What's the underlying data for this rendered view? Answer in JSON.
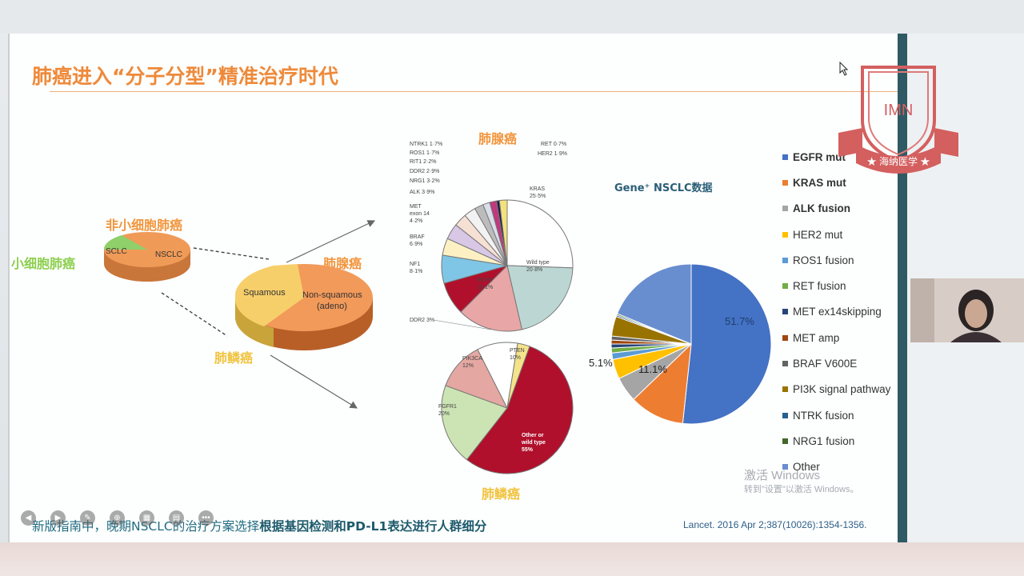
{
  "slide": {
    "title": "肺癌进入“分子分型”精准治疗时代",
    "labels": {
      "nsclc_title": "非小细胞肺癌",
      "sclc_side": "小细胞肺癌",
      "adeno_top": "肺腺癌",
      "adeno_mid": "肺腺癌",
      "squamous_mid": "肺鳞癌",
      "squamous_bottom": "肺鳞癌"
    },
    "small_pie": {
      "sclc": "SCLC",
      "nsclc": "NSCLC"
    },
    "mid_pie": {
      "squamous": "Squamous",
      "nonsq_line1": "Non-squamous",
      "nonsq_line2": "(adeno)"
    },
    "adeno_pie": {
      "kras_1": "KRAS",
      "kras_2": "25·5%",
      "wild_1": "Wild type",
      "wild_2": "20·8%",
      "egfr_1": "EGFR",
      "egfr_2": "16·1%",
      "nf1_1": "NF1",
      "nf1_2": "8·1%",
      "braf_1": "BRAF",
      "braf_2": "6·9%",
      "met_1": "MET",
      "met_2": "exon 14",
      "met_3": "4·2%",
      "alk": "ALK 3·9%",
      "nrg1": "NRG1 3·2%",
      "ddr2": "DDR2 2·9%",
      "rit1": "RIT1 2·2%",
      "ros1": "ROS1 1·7%",
      "ntrk1": "NTRK1 1·7%",
      "ret": "RET 0·7%",
      "her2": "HER2 1·9%"
    },
    "sq_pie": {
      "ddr2": "DDR2 3%",
      "pten_1": "PTEN",
      "pten_2": "10%",
      "pik3ca_1": "PIK3CA",
      "pik3ca_2": "12%",
      "fgfr1_1": "FGFR1",
      "fgfr1_2": "20%",
      "other_1": "Other or",
      "other_2": "wild type",
      "other_3": "55%"
    },
    "gene_title": "Gene⁺ NSCLC数据",
    "gene_pie_labels": {
      "egfr": "51.7%",
      "kras": "11.1%",
      "alk": "5.1%"
    },
    "legend": [
      {
        "label": "EGFR mut",
        "color": "#4472c4",
        "bold": true
      },
      {
        "label": "KRAS mut",
        "color": "#ed7d31",
        "bold": true
      },
      {
        "label": "ALK fusion",
        "color": "#a5a5a5",
        "bold": true
      },
      {
        "label": "HER2 mut",
        "color": "#ffc000",
        "bold": false
      },
      {
        "label": "ROS1 fusion",
        "color": "#5b9bd5",
        "bold": false
      },
      {
        "label": "RET fusion",
        "color": "#70ad47",
        "bold": false
      },
      {
        "label": "MET ex14skipping",
        "color": "#264478",
        "bold": false
      },
      {
        "label": "MET amp",
        "color": "#9e480e",
        "bold": false
      },
      {
        "label": "BRAF V600E",
        "color": "#636363",
        "bold": false
      },
      {
        "label": "PI3K signal pathway",
        "color": "#997300",
        "bold": false
      },
      {
        "label": "NTRK fusion",
        "color": "#255e91",
        "bold": false
      },
      {
        "label": "NRG1 fusion",
        "color": "#43682b",
        "bold": false
      },
      {
        "label": "Other",
        "color": "#698ed0",
        "bold": false
      }
    ],
    "footer_normal": "新版指南中，晚期NSCLC的治疗方案选择",
    "footer_bold": "根据基因检测和PD-L1表达进行人群细分",
    "citation": "Lancet. 2016 Apr 2;387(10026):1354-1356.",
    "watermark_line1": "激活 Windows",
    "watermark_line2": "转到\"设置\"以激活 Windows。",
    "logo_text": "IMN",
    "logo_banner": "★ 海纳医学 ★"
  },
  "chart_data": [
    {
      "type": "pie",
      "title": "Gene⁺ NSCLC数据",
      "categories": [
        "EGFR mut",
        "KRAS mut",
        "ALK fusion",
        "HER2 mut",
        "ROS1 fusion",
        "RET fusion",
        "MET ex14skipping",
        "MET amp",
        "BRAF V600E",
        "PI3K signal pathway",
        "NTRK fusion",
        "NRG1 fusion",
        "Other"
      ],
      "values": [
        51.7,
        11.1,
        5.1,
        4.0,
        1.3,
        1.0,
        0.8,
        0.8,
        0.8,
        4.0,
        0.3,
        0.3,
        18.8
      ],
      "legend": "right"
    },
    {
      "type": "pie",
      "title": "肺腺癌",
      "categories": [
        "KRAS",
        "Wild type",
        "EGFR",
        "NF1",
        "BRAF",
        "MET exon 14",
        "ALK",
        "NRG1",
        "DDR2",
        "RIT1",
        "ROS1",
        "NTRK1",
        "RET",
        "HER2"
      ],
      "values": [
        25.5,
        20.8,
        16.1,
        8.1,
        6.9,
        4.2,
        3.9,
        3.2,
        2.9,
        2.2,
        1.7,
        1.7,
        0.7,
        1.9
      ]
    },
    {
      "type": "pie",
      "title": "肺鳞癌",
      "categories": [
        "Other or wild type",
        "FGFR1",
        "PIK3CA",
        "PTEN",
        "DDR2"
      ],
      "values": [
        55,
        20,
        12,
        10,
        3
      ]
    }
  ]
}
